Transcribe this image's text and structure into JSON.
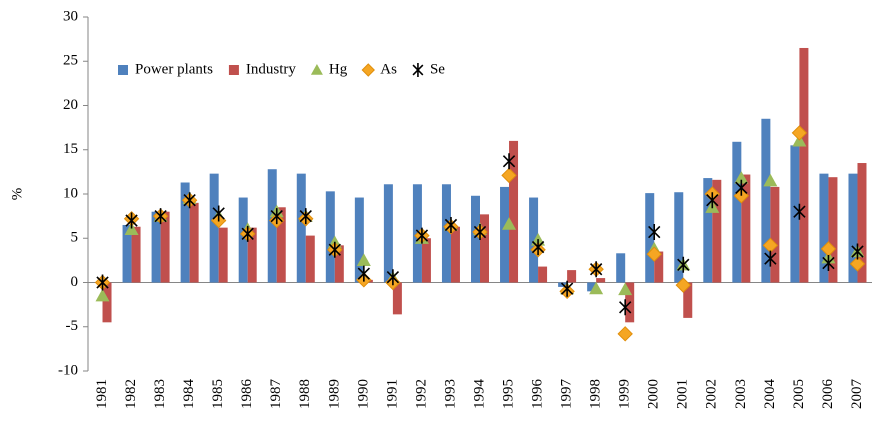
{
  "chart_data": {
    "type": "bar",
    "y_label": "%",
    "categories": [
      "1981",
      "1982",
      "1983",
      "1984",
      "1985",
      "1986",
      "1987",
      "1988",
      "1989",
      "1990",
      "1991",
      "1992",
      "1993",
      "1994",
      "1995",
      "1996",
      "1997",
      "1998",
      "1999",
      "2000",
      "2001",
      "2002",
      "2003",
      "2004",
      "2005",
      "2006",
      "2007"
    ],
    "series": [
      {
        "name": "Power plants",
        "type": "bar",
        "color": "#4f81bd",
        "values": [
          0,
          6.5,
          8,
          11.3,
          12.3,
          9.6,
          12.8,
          12.3,
          10.3,
          9.6,
          11.1,
          11.1,
          11.1,
          9.8,
          10.8,
          9.6,
          -0.5,
          -1,
          3.3,
          10.1,
          10.2,
          11.8,
          15.9,
          18.5,
          15.5,
          12.3,
          12.3
        ]
      },
      {
        "name": "Industry",
        "type": "bar",
        "color": "#c0504d",
        "values": [
          -4.5,
          6.3,
          8,
          9,
          6.2,
          6.2,
          8.5,
          5.3,
          4.2,
          0.3,
          -3.6,
          5,
          6.3,
          7.7,
          16,
          1.8,
          1.4,
          0.5,
          -4.5,
          3.5,
          -4,
          11.6,
          12.2,
          10.8,
          26.5,
          11.9,
          13.5
        ]
      },
      {
        "name": "Hg",
        "type": "scatter",
        "marker": "triangle",
        "color": "#9bbb59",
        "values": [
          -1.5,
          6,
          7.5,
          9.5,
          7.5,
          6,
          8,
          7.5,
          4.5,
          2.5,
          0.5,
          5,
          6.5,
          6,
          6.6,
          4.8,
          -0.7,
          -0.7,
          -0.8,
          3.8,
          2,
          8.5,
          11.8,
          11.5,
          16,
          2.8,
          3.5
        ]
      },
      {
        "name": "As",
        "type": "scatter",
        "marker": "diamond",
        "color": "#f5a623",
        "values": [
          0,
          7.2,
          7.5,
          9.3,
          7,
          5.5,
          7,
          7.2,
          3.7,
          0.3,
          0,
          5.3,
          6.3,
          5.7,
          12.1,
          3.7,
          -1,
          1.5,
          -5.8,
          3.2,
          -0.3,
          10,
          9.8,
          4.2,
          16.9,
          3.8,
          2.1
        ]
      },
      {
        "name": "Se",
        "type": "scatter",
        "marker": "asterisk",
        "color": "#000000",
        "values": [
          0,
          7,
          7.5,
          9.3,
          7.8,
          5.5,
          7.5,
          7.5,
          3.7,
          1,
          0.6,
          5.3,
          6.5,
          5.7,
          13.7,
          4,
          -0.7,
          1.5,
          -2.8,
          5.7,
          2,
          9.3,
          10.7,
          2.7,
          8,
          2.2,
          3.5
        ]
      }
    ],
    "ylim": [
      -10,
      30
    ],
    "yticks": [
      -10,
      -5,
      0,
      5,
      10,
      15,
      20,
      25,
      30
    ],
    "grid": false,
    "legend": "top-left"
  }
}
